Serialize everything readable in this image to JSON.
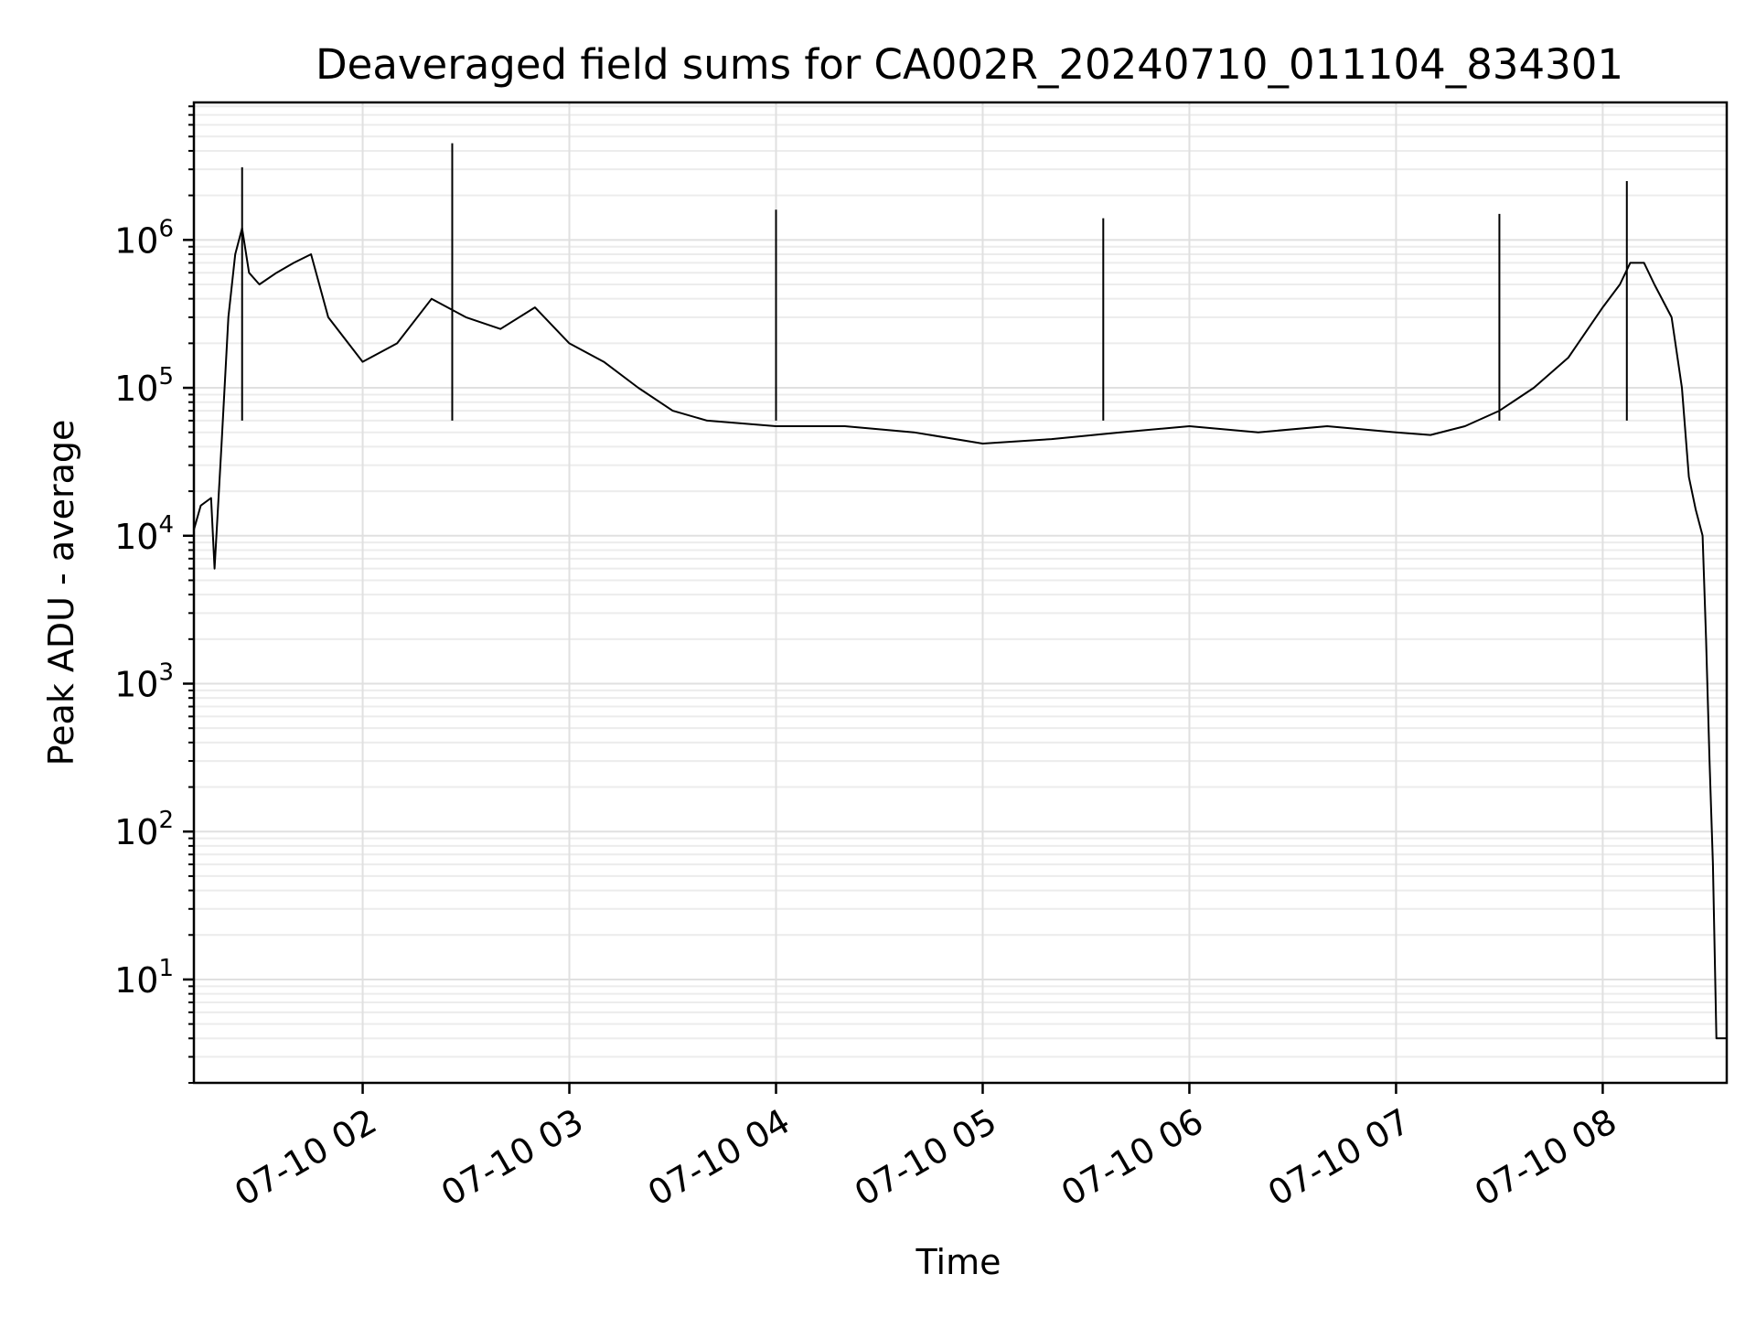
{
  "chart_data": {
    "type": "line",
    "title": "Deaveraged field sums for CA002R_20240710_011104_834301",
    "xlabel": "Time",
    "ylabel": "Peak ADU - average",
    "yscale": "log",
    "grid": true,
    "ylim": [
      2,
      8500000
    ],
    "xlim": [
      "2024-07-10 01:11",
      "2024-07-10 08:36"
    ],
    "xticks": [
      "2024-07-10 02:00",
      "2024-07-10 03:00",
      "2024-07-10 04:00",
      "2024-07-10 05:00",
      "2024-07-10 06:00",
      "2024-07-10 07:00",
      "2024-07-10 08:00"
    ],
    "xtick_labels": [
      "07-10 02",
      "07-10 03",
      "07-10 04",
      "07-10 05",
      "07-10 06",
      "07-10 07",
      "07-10 08"
    ],
    "ytick_labels": [
      {
        "base": "10",
        "exp": "1",
        "value": 10
      },
      {
        "base": "10",
        "exp": "2",
        "value": 100
      },
      {
        "base": "10",
        "exp": "3",
        "value": 1000
      },
      {
        "base": "10",
        "exp": "4",
        "value": 10000
      },
      {
        "base": "10",
        "exp": "5",
        "value": 100000
      },
      {
        "base": "10",
        "exp": "6",
        "value": 1000000
      }
    ],
    "series": [
      {
        "color": "#000000",
        "x": [
          "2024-07-10 01:11",
          "2024-07-10 01:13",
          "2024-07-10 01:16",
          "2024-07-10 01:17",
          "2024-07-10 01:19",
          "2024-07-10 01:21",
          "2024-07-10 01:23",
          "2024-07-10 01:25",
          "2024-07-10 01:27",
          "2024-07-10 01:30",
          "2024-07-10 01:35",
          "2024-07-10 01:40",
          "2024-07-10 01:45",
          "2024-07-10 01:50",
          "2024-07-10 02:00",
          "2024-07-10 02:10",
          "2024-07-10 02:20",
          "2024-07-10 02:30",
          "2024-07-10 02:40",
          "2024-07-10 02:50",
          "2024-07-10 03:00",
          "2024-07-10 03:10",
          "2024-07-10 03:20",
          "2024-07-10 03:30",
          "2024-07-10 03:40",
          "2024-07-10 04:00",
          "2024-07-10 04:20",
          "2024-07-10 04:40",
          "2024-07-10 05:00",
          "2024-07-10 05:20",
          "2024-07-10 05:40",
          "2024-07-10 06:00",
          "2024-07-10 06:20",
          "2024-07-10 06:40",
          "2024-07-10 07:00",
          "2024-07-10 07:10",
          "2024-07-10 07:20",
          "2024-07-10 07:30",
          "2024-07-10 07:40",
          "2024-07-10 07:50",
          "2024-07-10 08:00",
          "2024-07-10 08:05",
          "2024-07-10 08:08",
          "2024-07-10 08:12",
          "2024-07-10 08:15",
          "2024-07-10 08:20",
          "2024-07-10 08:23",
          "2024-07-10 08:25",
          "2024-07-10 08:27",
          "2024-07-10 08:29",
          "2024-07-10 08:30",
          "2024-07-10 08:31",
          "2024-07-10 08:32",
          "2024-07-10 08:33",
          "2024-07-10 08:36"
        ],
        "y": [
          11000,
          16000,
          18000,
          6000,
          40000,
          300000,
          800000,
          1200000,
          600000,
          500000,
          600000,
          700000,
          800000,
          300000,
          150000,
          200000,
          400000,
          300000,
          250000,
          350000,
          200000,
          150000,
          100000,
          70000,
          60000,
          55000,
          55000,
          50000,
          42000,
          45000,
          50000,
          55000,
          50000,
          55000,
          50000,
          48000,
          55000,
          70000,
          100000,
          160000,
          350000,
          500000,
          700000,
          700000,
          500000,
          300000,
          100000,
          25000,
          15000,
          10000,
          2000,
          300,
          60,
          4,
          4
        ]
      }
    ],
    "spikes": [
      {
        "x": "2024-07-10 01:25",
        "y": 3100000
      },
      {
        "x": "2024-07-10 02:26",
        "y": 4500000
      },
      {
        "x": "2024-07-10 04:00",
        "y": 1600000
      },
      {
        "x": "2024-07-10 05:35",
        "y": 1400000
      },
      {
        "x": "2024-07-10 07:30",
        "y": 1500000
      },
      {
        "x": "2024-07-10 08:07",
        "y": 2500000
      }
    ]
  }
}
